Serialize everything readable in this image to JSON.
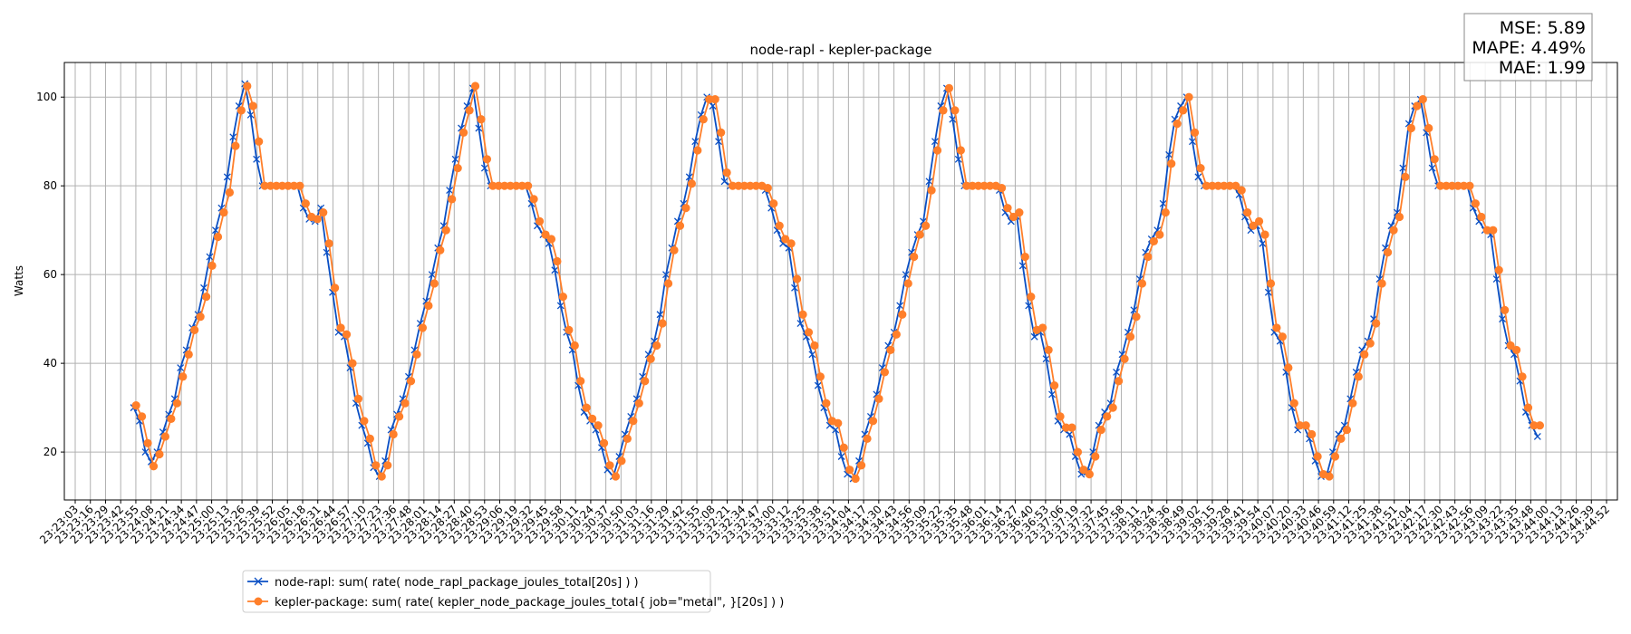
{
  "chart_data": {
    "type": "line",
    "title": "node-rapl - kepler-package",
    "xlabel": "",
    "ylabel": "Watts",
    "ylim": [
      9.2,
      107.8
    ],
    "yticks": [
      20,
      40,
      60,
      80,
      100
    ],
    "grid": true,
    "legend_position": "bottom-left-outside",
    "x_unit": "seconds since 23:23:03",
    "xticks": [
      "23:23:03",
      "23:23:16",
      "23:23:29",
      "23:23:42",
      "23:23:55",
      "23:24:08",
      "23:24:21",
      "23:24:34",
      "23:24:47",
      "23:25:00",
      "23:25:13",
      "23:25:26",
      "23:25:39",
      "23:25:52",
      "23:26:05",
      "23:26:18",
      "23:26:31",
      "23:26:44",
      "23:26:57",
      "23:27:10",
      "23:27:23",
      "23:27:36",
      "23:27:48",
      "23:28:01",
      "23:28:14",
      "23:28:27",
      "23:28:40",
      "23:28:53",
      "23:29:06",
      "23:29:19",
      "23:29:32",
      "23:29:45",
      "23:29:58",
      "23:30:11",
      "23:30:24",
      "23:30:37",
      "23:30:50",
      "23:31:03",
      "23:31:16",
      "23:31:29",
      "23:31:42",
      "23:31:55",
      "23:32:08",
      "23:32:21",
      "23:32:34",
      "23:32:47",
      "23:33:00",
      "23:33:12",
      "23:33:25",
      "23:33:38",
      "23:33:51",
      "23:34:04",
      "23:34:17",
      "23:34:30",
      "23:34:43",
      "23:34:56",
      "23:35:09",
      "23:35:22",
      "23:35:35",
      "23:35:48",
      "23:36:01",
      "23:36:14",
      "23:36:27",
      "23:36:40",
      "23:36:53",
      "23:37:06",
      "23:37:19",
      "23:37:32",
      "23:37:45",
      "23:37:58",
      "23:38:11",
      "23:38:24",
      "23:38:36",
      "23:38:49",
      "23:39:02",
      "23:39:15",
      "23:39:28",
      "23:39:41",
      "23:39:54",
      "23:40:07",
      "23:40:20",
      "23:40:33",
      "23:40:46",
      "23:40:59",
      "23:41:12",
      "23:41:25",
      "23:41:38",
      "23:41:51",
      "23:42:04",
      "23:42:17",
      "23:42:30",
      "23:42:43",
      "23:42:56",
      "23:43:09",
      "23:43:22",
      "23:43:35",
      "23:43:48",
      "23:44:00",
      "23:44:13",
      "23:44:26",
      "23:44:39",
      "23:44:52"
    ],
    "xtick_span_seconds": 1309,
    "series": [
      {
        "name": "node-rapl: sum( rate( node_rapl_package_joules_total[20s] ) )",
        "color": "#0a4fc4",
        "marker": "x",
        "t0": 50,
        "dt": 5,
        "values": [
          30,
          27,
          20,
          17.8,
          20,
          24.5,
          28.5,
          32,
          39,
          43,
          48,
          51,
          57,
          64,
          70,
          75,
          82,
          91,
          98,
          103,
          96,
          86,
          80,
          80,
          80,
          80,
          80,
          80,
          80,
          75,
          72.5,
          72,
          75,
          65,
          56,
          47,
          46,
          39,
          31,
          26,
          22,
          16.5,
          14.5,
          18,
          25,
          28.5,
          32,
          37,
          43,
          49,
          54,
          60,
          66,
          71,
          79,
          86,
          93,
          98,
          102,
          93,
          84,
          80,
          80,
          80,
          80,
          80,
          80,
          80,
          76,
          71,
          69,
          67,
          61,
          53,
          47,
          43,
          35,
          29,
          27,
          25,
          21,
          16,
          14.5,
          19,
          24,
          28,
          32,
          37,
          42,
          45,
          51,
          60,
          66,
          72,
          76,
          82,
          90,
          96,
          100,
          98,
          90,
          81,
          80,
          80,
          80,
          80,
          80,
          80,
          79,
          75,
          70,
          67,
          66,
          57,
          49,
          46,
          42,
          35,
          30,
          26,
          25,
          19,
          15,
          14,
          18,
          24,
          28,
          33,
          39,
          44,
          47,
          53,
          60,
          65,
          69,
          72,
          81,
          90,
          98,
          102,
          95,
          86,
          80,
          80,
          80,
          80,
          80,
          80,
          79,
          74,
          72,
          73,
          62,
          53,
          46,
          47,
          41,
          33,
          27,
          25,
          24,
          19,
          15,
          15.5,
          20,
          26,
          29,
          31,
          38,
          42,
          47,
          52,
          59,
          65,
          68,
          70,
          76,
          87,
          95,
          98,
          100,
          90,
          82,
          80,
          80,
          80,
          80,
          80,
          80,
          78,
          73,
          70,
          71,
          67,
          56,
          47,
          45,
          38,
          30,
          25,
          26,
          23,
          18,
          14.5,
          15,
          20,
          24,
          26,
          32,
          38,
          43,
          45,
          50,
          59,
          66,
          71,
          74,
          84,
          94,
          98,
          99.5,
          92,
          84,
          80,
          80,
          80,
          80,
          80,
          80,
          75,
          72,
          70,
          69,
          59,
          50,
          44,
          42,
          36,
          29,
          26,
          23.5
        ]
      },
      {
        "name": "kepler-package: sum( rate( kepler_node_package_joules_total{ job=\"metal\", }[20s] ) )",
        "color": "#ff7f2a",
        "marker": "o",
        "t0": 52,
        "dt": 5,
        "values": [
          30.5,
          28,
          22,
          16.8,
          19.5,
          23.5,
          27.5,
          31,
          37,
          42,
          47.5,
          50.5,
          55,
          62,
          68.5,
          74,
          78.5,
          89,
          97,
          102.5,
          98,
          90,
          80,
          80,
          80,
          80,
          80,
          80,
          80,
          76,
          73,
          72.5,
          74,
          67,
          57,
          48,
          46.5,
          40,
          32,
          27,
          23,
          17,
          14.5,
          17,
          24,
          28,
          31,
          36,
          42,
          48,
          53,
          58,
          65.5,
          70,
          77,
          84,
          92,
          97,
          102.5,
          95,
          86,
          80,
          80,
          80,
          80,
          80,
          80,
          80,
          77,
          72,
          69,
          68,
          63,
          55,
          47.5,
          44,
          36,
          30,
          27.5,
          26,
          22,
          17,
          14.5,
          18,
          23,
          27,
          31,
          36,
          41,
          44,
          49,
          58,
          65.5,
          71,
          75,
          80.5,
          88,
          95,
          99.5,
          99.5,
          92,
          83,
          80,
          80,
          80,
          80,
          80,
          80,
          79.5,
          76,
          71,
          68,
          67,
          59,
          51,
          47,
          44,
          37,
          31,
          27,
          26.5,
          21,
          16,
          14,
          17,
          23,
          27,
          32,
          38,
          43,
          46.5,
          51,
          58,
          64,
          69,
          71,
          79,
          88,
          97,
          102,
          97,
          88,
          80,
          80,
          80,
          80,
          80,
          80,
          79.5,
          75,
          73,
          74,
          64,
          55,
          47.5,
          48,
          43,
          35,
          28,
          25.5,
          25.5,
          20,
          16,
          15,
          19,
          25,
          28,
          30,
          36,
          41,
          46,
          50.5,
          58,
          64,
          67.5,
          69,
          74,
          85,
          94,
          97,
          100,
          92,
          84,
          80,
          80,
          80,
          80,
          80,
          80,
          79,
          74,
          71,
          72,
          69,
          58,
          48,
          46,
          39,
          31,
          26,
          26,
          24,
          19,
          15,
          14.5,
          19,
          23,
          25,
          31,
          37,
          42,
          44.5,
          49,
          58,
          65,
          70,
          73,
          82,
          93,
          98,
          99.5,
          93,
          86,
          80,
          80,
          80,
          80,
          80,
          80,
          76,
          73,
          70,
          70,
          61,
          52,
          44,
          43,
          37,
          30,
          26,
          26
        ]
      }
    ]
  },
  "metrics": {
    "mse": "MSE: 5.89",
    "mape": "MAPE: 4.49%",
    "mae": "MAE: 1.99"
  }
}
